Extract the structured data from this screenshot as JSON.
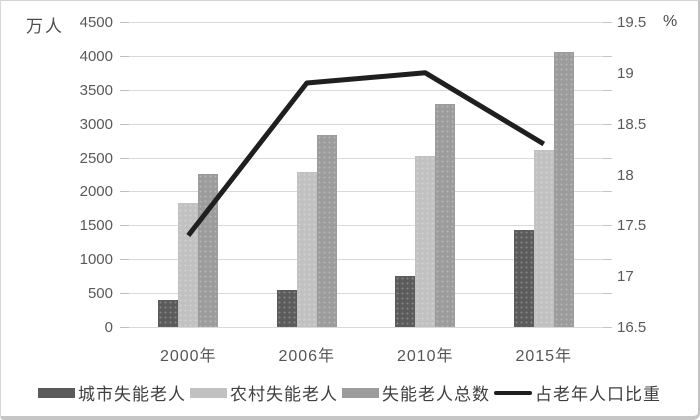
{
  "chart_data": {
    "type": "bar+line",
    "title": "",
    "categories": [
      "2000年",
      "2006年",
      "2010年",
      "2015年"
    ],
    "series": [
      {
        "key": "urban-disabled",
        "name": "城市失能老人",
        "type": "bar",
        "axis": "left",
        "color": "#5b5b5b",
        "values": [
          400,
          540,
          750,
          1430
        ]
      },
      {
        "key": "rural-disabled",
        "name": "农村失能老人",
        "type": "bar",
        "axis": "left",
        "color": "#c1c1c1",
        "values": [
          1830,
          2280,
          2530,
          2610
        ]
      },
      {
        "key": "total-disabled",
        "name": "失能老人总数",
        "type": "bar",
        "axis": "left",
        "color": "#9c9c9c",
        "values": [
          2260,
          2840,
          3290,
          4060
        ]
      },
      {
        "key": "elderly-ratio",
        "name": "占老年人口比重",
        "type": "line",
        "axis": "right",
        "color": "#1f1f1f",
        "values": [
          17.4,
          18.9,
          19.0,
          18.3
        ]
      }
    ],
    "left_axis": {
      "label": "万人",
      "min": 0,
      "max": 4500,
      "step": 500,
      "ticks": [
        "4500",
        "4000",
        "3500",
        "3000",
        "2500",
        "2000",
        "1500",
        "1000",
        "500",
        "0"
      ]
    },
    "right_axis": {
      "label": "%",
      "min": 16.5,
      "max": 19.5,
      "step": 0.5,
      "ticks": [
        "19.5",
        "19",
        "18.5",
        "18",
        "17.5",
        "17",
        "16.5"
      ]
    },
    "grid": true,
    "legend_position": "bottom",
    "colors": {
      "gridline": "#dadada",
      "tick": "#c0c0c0",
      "axis_text": "#595959",
      "frame": "#c6c6c6"
    }
  }
}
